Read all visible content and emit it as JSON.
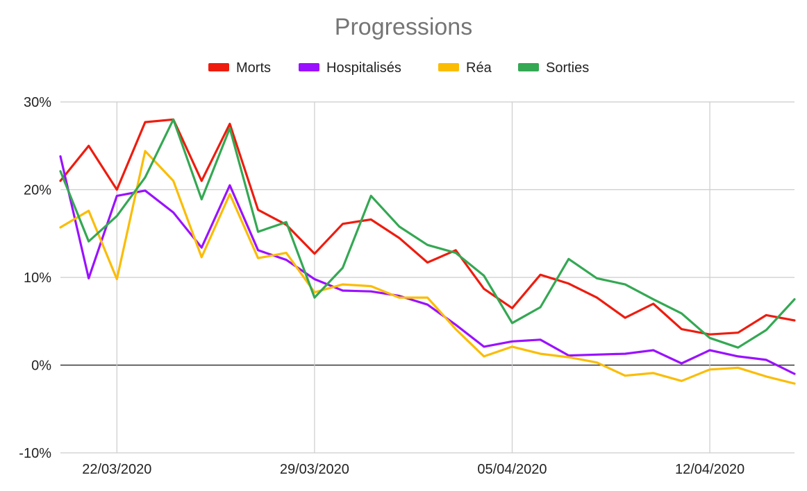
{
  "chart_data": {
    "type": "line",
    "title": "Progressions",
    "xlabel": "",
    "ylabel": "",
    "x": [
      "20/03/2020",
      "21/03/2020",
      "22/03/2020",
      "23/03/2020",
      "24/03/2020",
      "25/03/2020",
      "26/03/2020",
      "27/03/2020",
      "28/03/2020",
      "29/03/2020",
      "30/03/2020",
      "31/03/2020",
      "01/04/2020",
      "02/04/2020",
      "03/04/2020",
      "04/04/2020",
      "05/04/2020",
      "06/04/2020",
      "07/04/2020",
      "08/04/2020",
      "09/04/2020",
      "10/04/2020",
      "11/04/2020",
      "12/04/2020",
      "13/04/2020",
      "14/04/2020",
      "15/04/2020"
    ],
    "x_tick_labels": [
      "22/03/2020",
      "29/03/2020",
      "05/04/2020",
      "12/04/2020"
    ],
    "y_tick_labels": [
      "30%",
      "20%",
      "10%",
      "0%",
      "-10%"
    ],
    "ylim": [
      -10,
      30
    ],
    "grid": true,
    "legend_position": "top",
    "series": [
      {
        "name": "Morts",
        "color": "#ee1c0e",
        "values": [
          21.0,
          25.0,
          20.0,
          27.7,
          28.0,
          21.0,
          27.5,
          17.7,
          16.0,
          12.7,
          16.1,
          16.6,
          14.5,
          11.7,
          13.1,
          8.7,
          6.5,
          10.3,
          9.3,
          7.7,
          5.4,
          7.0,
          4.1,
          3.5,
          3.7,
          5.7,
          5.1
        ]
      },
      {
        "name": "Hospitalisés",
        "color": "#9a11ff",
        "values": [
          23.8,
          9.9,
          19.3,
          19.9,
          17.4,
          13.4,
          20.5,
          13.1,
          12.0,
          9.8,
          8.5,
          8.4,
          7.9,
          6.9,
          4.6,
          2.1,
          2.7,
          2.9,
          1.1,
          1.2,
          1.3,
          1.7,
          0.2,
          1.7,
          1.0,
          0.6,
          -1.0
        ]
      },
      {
        "name": "Réa",
        "color": "#fbbc04",
        "values": [
          15.7,
          17.6,
          9.8,
          24.4,
          21.0,
          12.3,
          19.5,
          12.2,
          12.8,
          8.3,
          9.2,
          9.0,
          7.7,
          7.7,
          4.1,
          1.0,
          2.1,
          1.3,
          0.9,
          0.3,
          -1.2,
          -0.9,
          -1.8,
          -0.5,
          -0.3,
          -1.3,
          -2.1
        ]
      },
      {
        "name": "Sorties",
        "color": "#34a853",
        "values": [
          22.1,
          14.1,
          17.0,
          21.4,
          28.0,
          18.9,
          27.0,
          15.2,
          16.3,
          7.7,
          11.1,
          19.3,
          15.8,
          13.7,
          12.8,
          10.2,
          4.8,
          6.6,
          12.1,
          9.9,
          9.2,
          7.5,
          5.9,
          3.1,
          2.0,
          4.0,
          7.5
        ]
      }
    ]
  }
}
